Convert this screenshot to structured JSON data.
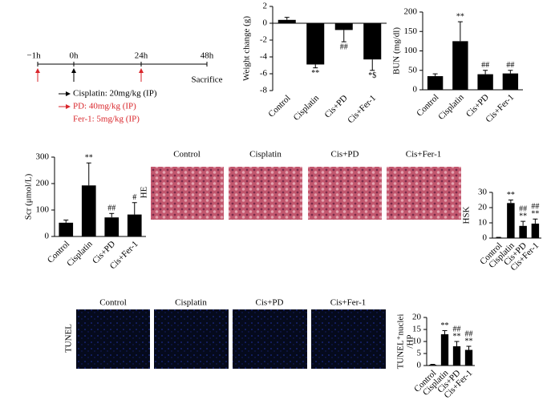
{
  "timeline": {
    "ticks": [
      "−1h",
      "0h",
      "24h",
      "48h"
    ],
    "end_label": "Sacrifice",
    "legend": [
      "Cisplatin: 20mg/kg (IP)",
      "PD: 40mg/kg (IP)",
      "Fer-1: 5mg/kg (IP)"
    ]
  },
  "he_panel": {
    "row_label": "HE",
    "columns": [
      "Control",
      "Cisplatin",
      "Cis+PD",
      "Cis+Fer-1"
    ]
  },
  "tunel_panel": {
    "row_label": "TUNEL",
    "columns": [
      "Control",
      "Cisplatin",
      "Cis+PD",
      "Cis+Fer-1"
    ]
  },
  "chart_data": [
    {
      "type": "bar",
      "ylabel": [
        "Weight change (g)"
      ],
      "categories": [
        "Control",
        "Cisplatin",
        "Cis+PD",
        "Cis+Fer-1"
      ],
      "values": [
        0.4,
        -4.9,
        -0.8,
        -4.3
      ],
      "errors": [
        0.3,
        0.4,
        1.4,
        1.3
      ],
      "annotations": [
        [],
        [
          "**"
        ],
        [
          "##"
        ],
        [
          "*$"
        ]
      ],
      "ylim": [
        -8,
        2
      ],
      "yticks": [
        -8,
        -6,
        -4,
        -2,
        0,
        2
      ],
      "color": "#000000"
    },
    {
      "type": "bar",
      "ylabel": [
        "BUN (mg/dl)"
      ],
      "categories": [
        "Control",
        "Cisplatin",
        "Cis+PD",
        "Cis+Fer-1"
      ],
      "values": [
        35,
        125,
        40,
        42
      ],
      "errors": [
        6,
        50,
        10,
        8
      ],
      "annotations": [
        [],
        [
          "**"
        ],
        [
          "##"
        ],
        [
          "##"
        ]
      ],
      "ylim": [
        0,
        200
      ],
      "yticks": [
        0,
        50,
        100,
        150,
        200
      ],
      "color": "#000000"
    },
    {
      "type": "bar",
      "ylabel": [
        "Scr (μmol/L)"
      ],
      "categories": [
        "Control",
        "Cisplatin",
        "Cis+PD",
        "Cis+Fer-1"
      ],
      "values": [
        52,
        193,
        72,
        83
      ],
      "errors": [
        10,
        85,
        15,
        45
      ],
      "annotations": [
        [],
        [
          "**"
        ],
        [
          "##"
        ],
        [
          "#"
        ]
      ],
      "ylim": [
        0,
        300
      ],
      "yticks": [
        0,
        100,
        200,
        300
      ],
      "color": "#000000"
    },
    {
      "type": "bar",
      "ylabel": [
        "HSK"
      ],
      "categories": [
        "Control",
        "Cisplatin",
        "Cis+PD",
        "Cis+Fer-1"
      ],
      "values": [
        0.3,
        23,
        8,
        9.5
      ],
      "errors": [
        0.2,
        2,
        3,
        3
      ],
      "annotations": [
        [],
        [
          "**"
        ],
        [
          "**",
          "##"
        ],
        [
          "**",
          "##"
        ]
      ],
      "ylim": [
        0,
        30
      ],
      "yticks": [
        0,
        10,
        20,
        30
      ],
      "color": "#000000"
    },
    {
      "type": "bar",
      "ylabel": [
        "TUNEL⁺nuclei",
        "/HP"
      ],
      "categories": [
        "Control",
        "Cisplatin",
        "Cis+PD",
        "Cis+Fer-1"
      ],
      "values": [
        0.3,
        13,
        8,
        6.5
      ],
      "errors": [
        0.2,
        1.5,
        2,
        1.5
      ],
      "annotations": [
        [],
        [
          "**"
        ],
        [
          "**",
          "##"
        ],
        [
          "**",
          "##"
        ]
      ],
      "ylim": [
        0,
        20
      ],
      "yticks": [
        0,
        5,
        10,
        15,
        20
      ],
      "color": "#000000"
    }
  ]
}
